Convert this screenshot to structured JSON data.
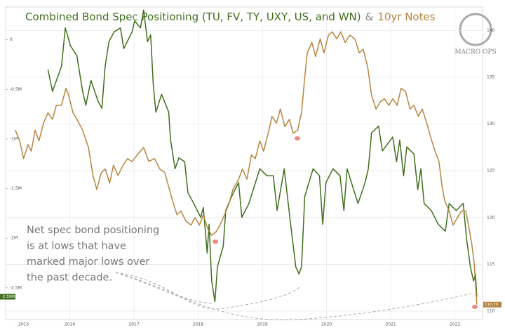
{
  "chart_data": {
    "type": "line",
    "title_connector": "&",
    "logo": "MACRO OPS",
    "annotation": [
      "Net spec bond positioning",
      "is at lows that have",
      "marked major lows over",
      "the past decade."
    ],
    "xlim": [
      2015,
      2022.43
    ],
    "xticks": [
      2015,
      2016,
      2017,
      2018,
      2019,
      2020,
      2021,
      2022
    ],
    "ylim": [
      -2.82,
      0.33
    ],
    "yticks": [
      0,
      {
        "value": -0.5,
        "label": "-0.5M"
      },
      {
        "value": -1,
        "label": "-1M"
      },
      {
        "value": -1.5,
        "label": "-1.5M"
      },
      {
        "value": -2,
        "label": "-2M"
      },
      {
        "value": -2.5,
        "label": "-2.5M"
      }
    ],
    "y2lim": [
      109.1,
      142.5
    ],
    "y2ticks": [
      110,
      115,
      120,
      125,
      130,
      135,
      140
    ],
    "grid": true,
    "series": [
      {
        "name": "Combined Bond Spec Positioning (TU, FV, TY, UXY, US, and WN)",
        "color": "#3f6e1c",
        "last_label": "-2.59M",
        "x": [
          2015.66,
          2015.73,
          2015.87,
          2015.93,
          2016.01,
          2016.11,
          2016.2,
          2016.25,
          2016.33,
          2016.44,
          2016.5,
          2016.55,
          2016.61,
          2016.69,
          2016.79,
          2016.84,
          2016.97,
          2017.01,
          2017.1,
          2017.15,
          2017.21,
          2017.26,
          2017.3,
          2017.34,
          2017.43,
          2017.54,
          2017.57,
          2017.64,
          2017.7,
          2017.79,
          2017.84,
          2017.93,
          2018.04,
          2018.08,
          2018.14,
          2018.17,
          2018.21,
          2018.26,
          2018.3,
          2018.39,
          2018.43,
          2018.52,
          2018.63,
          2018.68,
          2018.79,
          2018.96,
          2019.07,
          2019.17,
          2019.23,
          2019.34,
          2019.44,
          2019.52,
          2019.57,
          2019.61,
          2019.66,
          2019.79,
          2019.89,
          2019.94,
          2019.99,
          2020.1,
          2020.21,
          2020.27,
          2020.32,
          2020.49,
          2020.6,
          2020.65,
          2020.7,
          2020.81,
          2020.87,
          2021.03,
          2021.09,
          2021.14,
          2021.2,
          2021.25,
          2021.36,
          2021.42,
          2021.47,
          2021.52,
          2021.63,
          2021.74,
          2021.85,
          2021.91,
          2022.02,
          2022.13,
          2022.18,
          2022.24,
          2022.29,
          2022.32,
          2022.34
        ],
        "values": [
          -0.3,
          -0.52,
          -0.27,
          0.12,
          -0.06,
          -0.16,
          -0.52,
          -0.66,
          -0.41,
          -0.62,
          -0.69,
          -0.27,
          -0.02,
          0.08,
          0.12,
          -0.09,
          0.08,
          0.19,
          0.12,
          0.3,
          -0.02,
          0.05,
          -0.45,
          -0.73,
          -0.55,
          -0.73,
          -1.01,
          -1.3,
          -1.19,
          -1.23,
          -1.54,
          -1.65,
          -1.79,
          -1.69,
          -2.15,
          -1.86,
          -2.43,
          -2.64,
          -2.29,
          -2.08,
          -1.72,
          -1.58,
          -1.44,
          -1.79,
          -1.65,
          -1.3,
          -1.37,
          -1.37,
          -1.72,
          -1.3,
          -1.86,
          -2.29,
          -2.36,
          -2.29,
          -1.58,
          -1.3,
          -1.37,
          -1.86,
          -1.44,
          -1.3,
          -1.37,
          -1.72,
          -1.3,
          -1.65,
          -1.44,
          -1.3,
          -0.94,
          -0.87,
          -1.12,
          -0.98,
          -1.23,
          -1.01,
          -1.37,
          -1.08,
          -1.15,
          -1.51,
          -1.3,
          -1.65,
          -1.72,
          -1.86,
          -1.93,
          -1.65,
          -1.72,
          -1.65,
          -2.0,
          -2.29,
          -2.43,
          -2.36,
          -2.59
        ]
      },
      {
        "name": "10yr Notes",
        "color": "#b9843f",
        "axis": "y2",
        "last_label": "110.70",
        "x": [
          2015.15,
          2015.22,
          2015.28,
          2015.35,
          2015.4,
          2015.46,
          2015.52,
          2015.59,
          2015.66,
          2015.73,
          2015.79,
          2015.87,
          2015.94,
          2015.98,
          2016.05,
          2016.11,
          2016.2,
          2016.29,
          2016.36,
          2016.42,
          2016.49,
          2016.55,
          2016.62,
          2016.68,
          2016.75,
          2016.83,
          2016.9,
          2016.97,
          2017.05,
          2017.15,
          2017.23,
          2017.32,
          2017.4,
          2017.48,
          2017.54,
          2017.6,
          2017.67,
          2017.73,
          2017.81,
          2017.89,
          2017.95,
          2018.02,
          2018.08,
          2018.15,
          2018.21,
          2018.28,
          2018.34,
          2018.41,
          2018.48,
          2018.54,
          2018.63,
          2018.69,
          2018.76,
          2018.83,
          2018.89,
          2018.96,
          2019.02,
          2019.09,
          2019.15,
          2019.22,
          2019.28,
          2019.35,
          2019.42,
          2019.48,
          2019.55,
          2019.61,
          2019.66,
          2019.7,
          2019.77,
          2019.83,
          2019.9,
          2019.96,
          2020.03,
          2020.09,
          2020.16,
          2020.22,
          2020.29,
          2020.36,
          2020.44,
          2020.51,
          2020.57,
          2020.64,
          2020.7,
          2020.77,
          2020.84,
          2020.9,
          2020.97,
          2021.03,
          2021.1,
          2021.16,
          2021.23,
          2021.3,
          2021.36,
          2021.43,
          2021.49,
          2021.56,
          2021.62,
          2021.69,
          2021.75,
          2021.8,
          2021.84,
          2021.91,
          2021.97,
          2022.04,
          2022.1,
          2022.17,
          2022.21,
          2022.26,
          2022.3,
          2022.34
        ],
        "values": [
          129.35,
          128.2,
          126.3,
          127.8,
          127.1,
          129.35,
          128.2,
          130.1,
          131.2,
          130.5,
          132.0,
          132.0,
          133.8,
          133.1,
          131.2,
          130.5,
          129.35,
          127.5,
          124.5,
          123.0,
          124.8,
          125.2,
          123.7,
          125.6,
          124.5,
          125.6,
          126.3,
          125.97,
          126.7,
          127.5,
          126.0,
          126.3,
          125.2,
          124.8,
          123.3,
          121.8,
          120.3,
          120.7,
          119.6,
          119.2,
          120.0,
          119.2,
          120.3,
          118.8,
          118.1,
          118.5,
          119.2,
          120.3,
          121.5,
          123.0,
          124.1,
          125.2,
          124.1,
          126.7,
          126.3,
          128.2,
          127.1,
          129.0,
          130.8,
          130.1,
          131.6,
          129.7,
          130.5,
          129.0,
          129.35,
          131.2,
          135.0,
          137.6,
          138.7,
          137.2,
          139.1,
          137.6,
          139.5,
          139.85,
          139.1,
          139.85,
          138.7,
          139.5,
          139.1,
          137.6,
          138.0,
          136.1,
          133.1,
          131.6,
          132.4,
          132.7,
          132.0,
          132.7,
          132.0,
          133.8,
          133.5,
          131.6,
          132.0,
          130.8,
          131.6,
          130.1,
          128.6,
          127.1,
          126.0,
          123.3,
          121.8,
          120.7,
          119.2,
          120.0,
          120.7,
          120.7,
          119.2,
          117.3,
          115.1,
          110.7
        ]
      }
    ]
  }
}
